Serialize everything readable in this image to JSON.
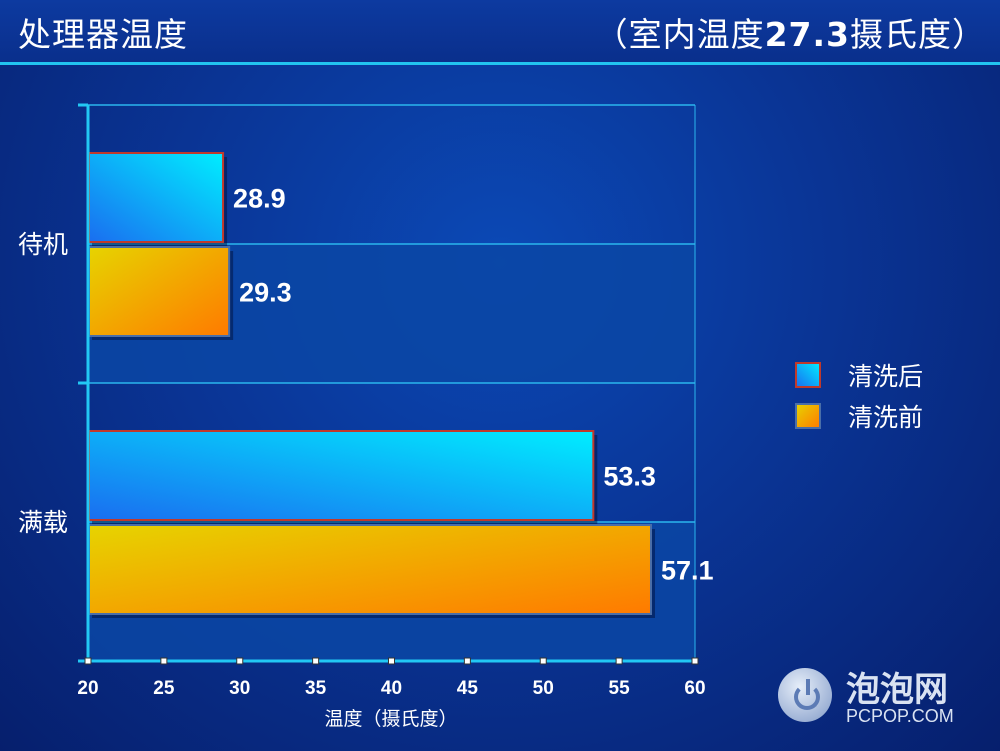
{
  "header": {
    "title": "处理器温度",
    "subtitle_prefix": "（室内温度",
    "subtitle_value": "27.3",
    "subtitle_suffix": "摄氏度）"
  },
  "chart_data": {
    "type": "bar",
    "orientation": "horizontal",
    "categories": [
      "待机",
      "满载"
    ],
    "series": [
      {
        "name": "清洗后",
        "values": [
          28.9,
          53.3
        ],
        "color": "#12aaf2"
      },
      {
        "name": "清洗前",
        "values": [
          29.3,
          57.1
        ],
        "color": "#f2a400"
      }
    ],
    "xlabel": "温度（摄氏度）",
    "xlim": [
      20,
      60
    ],
    "xticks": [
      "20",
      "25",
      "30",
      "35",
      "40",
      "45",
      "50",
      "55",
      "60"
    ],
    "grid": true,
    "legend_position": "right"
  },
  "watermark": {
    "name": "泡泡网",
    "domain": "PCPOP.COM",
    "icon": "power-icon"
  }
}
